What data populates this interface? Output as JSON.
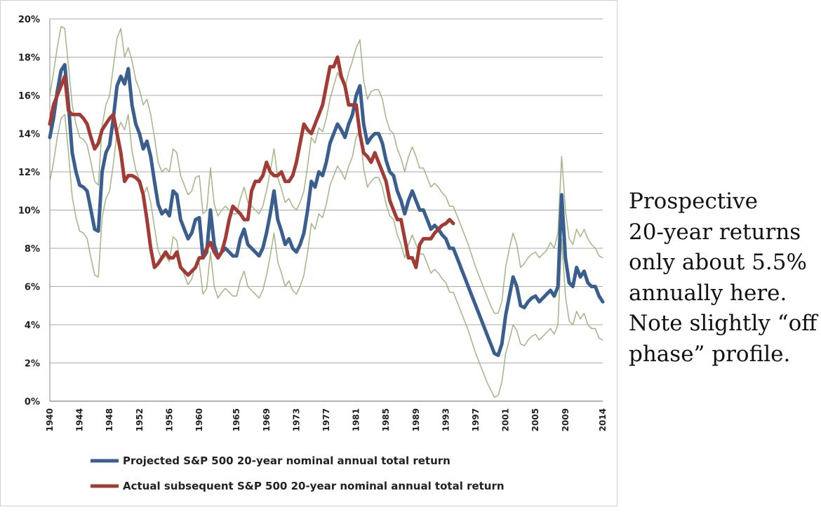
{
  "annotation": {
    "lines": [
      "Prospective",
      "20-year returns",
      "only about 5.5%",
      "annually here.",
      "Note slightly “off",
      "phase” profile."
    ]
  },
  "chart_data": {
    "type": "line",
    "title": "",
    "xlabel": "",
    "ylabel": "",
    "xlim": [
      1940,
      2014
    ],
    "ylim": [
      0,
      20
    ],
    "y_ticks": [
      "0%",
      "2%",
      "4%",
      "6%",
      "8%",
      "10%",
      "12%",
      "14%",
      "16%",
      "18%",
      "20%"
    ],
    "x_ticks": [
      "1940",
      "1944",
      "1948",
      "1952",
      "1956",
      "1960",
      "1965",
      "1969",
      "1973",
      "1977",
      "1981",
      "1985",
      "1989",
      "1993",
      "1997",
      "2001",
      "2005",
      "2009",
      "2014"
    ],
    "grid": "horizontal",
    "legend_position": "bottom",
    "series": [
      {
        "name": "Projected S&P 500 20-year nominal annual total return",
        "color": "#3a5f8f",
        "role": "main",
        "x": [
          1940,
          1940.5,
          1941,
          1941.5,
          1942,
          1942.5,
          1943,
          1943.5,
          1944,
          1944.5,
          1945,
          1945.5,
          1946,
          1946.5,
          1947,
          1947.5,
          1948,
          1948.5,
          1949,
          1949.5,
          1950,
          1950.5,
          1951,
          1951.5,
          1952,
          1952.5,
          1953,
          1953.5,
          1954,
          1954.5,
          1955,
          1955.5,
          1956,
          1956.5,
          1957,
          1957.5,
          1958,
          1958.5,
          1959,
          1959.5,
          1960,
          1960.5,
          1961,
          1961.5,
          1962,
          1962.5,
          1963,
          1963.5,
          1964,
          1964.5,
          1965,
          1965.5,
          1966,
          1966.5,
          1967,
          1967.5,
          1968,
          1968.5,
          1969,
          1969.5,
          1970,
          1970.5,
          1971,
          1971.5,
          1972,
          1972.5,
          1973,
          1973.5,
          1974,
          1974.5,
          1975,
          1975.5,
          1976,
          1976.5,
          1977,
          1977.5,
          1978,
          1978.5,
          1979,
          1979.5,
          1980,
          1980.5,
          1981,
          1981.5,
          1982,
          1982.5,
          1983,
          1983.5,
          1984,
          1984.5,
          1985,
          1985.5,
          1986,
          1986.5,
          1987,
          1987.5,
          1988,
          1988.5,
          1989,
          1989.5,
          1990,
          1990.5,
          1991,
          1991.5,
          1992,
          1992.5,
          1993,
          1993.5,
          1994,
          1994.5,
          1995,
          1995.5,
          1996,
          1996.5,
          1997,
          1997.5,
          1998,
          1998.5,
          1999,
          1999.5,
          2000,
          2000.5,
          2001,
          2001.5,
          2002,
          2002.5,
          2003,
          2003.5,
          2004,
          2004.5,
          2005,
          2005.5,
          2006,
          2006.5,
          2007,
          2007.5,
          2008,
          2008.5,
          2009,
          2009.5,
          2010,
          2010.5,
          2011,
          2011.5,
          2012,
          2012.5,
          2013,
          2013.5,
          2014
        ],
        "y": [
          13.8,
          14.8,
          16.2,
          17.3,
          17.6,
          15.5,
          13.0,
          12.0,
          11.3,
          11.2,
          11.0,
          10.0,
          9.0,
          8.9,
          12.0,
          13.0,
          13.4,
          14.8,
          16.5,
          17.0,
          16.6,
          17.4,
          15.5,
          14.5,
          14.0,
          13.2,
          13.6,
          12.8,
          11.5,
          10.3,
          9.8,
          10.0,
          9.7,
          11.0,
          10.8,
          9.5,
          9.0,
          8.5,
          8.8,
          9.5,
          9.6,
          7.5,
          7.8,
          10.0,
          8.2,
          7.5,
          7.8,
          8.0,
          7.8,
          7.6,
          7.6,
          8.5,
          9.0,
          8.2,
          8.0,
          7.8,
          7.6,
          8.0,
          8.8,
          9.8,
          11.0,
          9.5,
          8.9,
          8.2,
          8.5,
          8.0,
          7.8,
          8.2,
          8.8,
          10.0,
          11.5,
          11.2,
          12.0,
          11.8,
          12.5,
          13.5,
          14.0,
          14.5,
          14.2,
          13.8,
          14.5,
          15.0,
          16.0,
          16.5,
          14.5,
          13.5,
          13.8,
          14.0,
          14.0,
          13.5,
          12.6,
          12.0,
          11.8,
          11.0,
          10.5,
          9.8,
          10.5,
          11.0,
          10.5,
          10.0,
          10.0,
          9.5,
          9.0,
          9.2,
          9.0,
          8.7,
          8.5,
          8.0,
          8.0,
          7.5,
          7.0,
          6.5,
          6.0,
          5.5,
          5.0,
          4.5,
          4.0,
          3.5,
          3.0,
          2.5,
          2.4,
          3.0,
          4.5,
          5.5,
          6.5,
          6.0,
          5.0,
          4.9,
          5.2,
          5.4,
          5.5,
          5.2,
          5.4,
          5.6,
          5.8,
          5.5,
          6.0,
          10.8,
          7.5,
          6.2,
          6.0,
          7.0,
          6.5,
          6.8,
          6.2,
          6.0,
          6.0,
          5.5,
          5.2
        ]
      },
      {
        "name": "Actual subsequent S&P 500 20-year nominal annual total return",
        "color": "#a33b35",
        "role": "main",
        "x": [
          1940,
          1940.5,
          1941,
          1941.5,
          1942,
          1942.5,
          1943,
          1943.5,
          1944,
          1944.5,
          1945,
          1945.5,
          1946,
          1946.5,
          1947,
          1947.5,
          1948,
          1948.5,
          1949,
          1949.5,
          1950,
          1950.5,
          1951,
          1951.5,
          1952,
          1952.5,
          1953,
          1953.5,
          1954,
          1954.5,
          1955,
          1955.5,
          1956,
          1956.5,
          1957,
          1957.5,
          1958,
          1958.5,
          1959,
          1959.5,
          1960,
          1960.5,
          1961,
          1961.5,
          1962,
          1962.5,
          1963,
          1963.5,
          1964,
          1964.5,
          1965,
          1965.5,
          1966,
          1966.5,
          1967,
          1967.5,
          1968,
          1968.5,
          1969,
          1969.5,
          1970,
          1970.5,
          1971,
          1971.5,
          1972,
          1972.5,
          1973,
          1973.5,
          1974,
          1974.5,
          1975,
          1975.5,
          1976,
          1976.5,
          1977,
          1977.5,
          1978,
          1978.5,
          1979,
          1979.5,
          1980,
          1980.5,
          1981,
          1981.5,
          1982,
          1982.5,
          1983,
          1983.5,
          1984,
          1984.5,
          1985,
          1985.5,
          1986,
          1986.5,
          1987,
          1987.5,
          1988,
          1988.5,
          1989,
          1989.5,
          1990,
          1990.5,
          1991,
          1991.5,
          1992,
          1992.5,
          1993,
          1993.5,
          1994
        ],
        "y": [
          14.5,
          15.5,
          16.0,
          16.5,
          17.0,
          15.2,
          15.0,
          15.0,
          15.0,
          14.8,
          14.5,
          13.8,
          13.2,
          13.5,
          14.2,
          14.5,
          14.8,
          15.0,
          14.0,
          13.0,
          11.5,
          11.8,
          11.8,
          11.7,
          11.5,
          10.8,
          9.5,
          8.0,
          7.0,
          7.2,
          7.5,
          7.8,
          7.5,
          7.5,
          7.8,
          7.0,
          6.8,
          6.6,
          6.8,
          7.0,
          7.5,
          7.5,
          8.0,
          8.3,
          7.8,
          7.5,
          7.8,
          8.5,
          9.5,
          10.2,
          10.0,
          9.8,
          9.5,
          9.5,
          11.0,
          11.5,
          11.5,
          11.8,
          12.5,
          12.0,
          11.8,
          11.8,
          12.0,
          11.5,
          11.5,
          11.8,
          12.5,
          13.5,
          14.5,
          14.2,
          14.0,
          14.5,
          15.0,
          15.5,
          16.5,
          17.5,
          17.5,
          18.0,
          17.0,
          16.5,
          15.5,
          15.5,
          15.5,
          14.0,
          13.0,
          12.8,
          12.5,
          13.0,
          12.5,
          12.0,
          11.5,
          10.5,
          10.0,
          9.5,
          9.5,
          8.5,
          7.5,
          7.5,
          7.0,
          8.2,
          8.5,
          8.5,
          8.5,
          8.8,
          9.0,
          9.2,
          9.3,
          9.5,
          9.3
        ]
      },
      {
        "name": "Upper band",
        "color": "#9fb07e",
        "role": "band",
        "x": [
          1940,
          1940.5,
          1941,
          1941.5,
          1942,
          1942.5,
          1943,
          1943.5,
          1944,
          1944.5,
          1945,
          1945.5,
          1946,
          1946.5,
          1947,
          1947.5,
          1948,
          1948.5,
          1949,
          1949.5,
          1950,
          1950.5,
          1951,
          1951.5,
          1952,
          1952.5,
          1953,
          1953.5,
          1954,
          1954.5,
          1955,
          1955.5,
          1956,
          1956.5,
          1957,
          1957.5,
          1958,
          1958.5,
          1959,
          1959.5,
          1960,
          1960.5,
          1961,
          1961.5,
          1962,
          1962.5,
          1963,
          1963.5,
          1964,
          1964.5,
          1965,
          1965.5,
          1966,
          1966.5,
          1967,
          1967.5,
          1968,
          1968.5,
          1969,
          1969.5,
          1970,
          1970.5,
          1971,
          1971.5,
          1972,
          1972.5,
          1973,
          1973.5,
          1974,
          1974.5,
          1975,
          1975.5,
          1976,
          1976.5,
          1977,
          1977.5,
          1978,
          1978.5,
          1979,
          1979.5,
          1980,
          1980.5,
          1981,
          1981.5,
          1982,
          1982.5,
          1983,
          1983.5,
          1984,
          1984.5,
          1985,
          1985.5,
          1986,
          1986.5,
          1987,
          1987.5,
          1988,
          1988.5,
          1989,
          1989.5,
          1990,
          1990.5,
          1991,
          1991.5,
          1992,
          1992.5,
          1993,
          1993.5,
          1994,
          1994.5,
          1995,
          1995.5,
          1996,
          1996.5,
          1997,
          1997.5,
          1998,
          1998.5,
          1999,
          1999.5,
          2000,
          2000.5,
          2001,
          2001.5,
          2002,
          2002.5,
          2003,
          2003.5,
          2004,
          2004.5,
          2005,
          2005.5,
          2006,
          2006.5,
          2007,
          2007.5,
          2008,
          2008.5,
          2009,
          2009.5,
          2010,
          2010.5,
          2011,
          2011.5,
          2012,
          2012.5,
          2013,
          2013.5,
          2014
        ],
        "y": [
          16.0,
          17.2,
          18.5,
          19.6,
          19.5,
          17.5,
          15.5,
          14.5,
          13.8,
          13.7,
          13.4,
          12.5,
          11.5,
          11.3,
          14.4,
          15.5,
          16.0,
          17.5,
          19.0,
          19.5,
          18.0,
          18.5,
          17.8,
          16.8,
          16.3,
          15.5,
          15.8,
          15.0,
          13.8,
          12.5,
          12.0,
          12.2,
          12.0,
          13.2,
          13.0,
          11.8,
          11.3,
          10.8,
          11.0,
          11.7,
          11.8,
          9.8,
          10.0,
          12.2,
          10.3,
          9.7,
          10.0,
          10.2,
          10.0,
          9.8,
          9.8,
          10.6,
          11.2,
          10.4,
          10.2,
          10.0,
          9.8,
          10.2,
          11.0,
          12.0,
          13.2,
          11.7,
          11.1,
          10.4,
          10.6,
          10.2,
          10.0,
          10.4,
          11.0,
          12.3,
          13.8,
          13.5,
          14.3,
          14.1,
          14.8,
          15.8,
          16.5,
          17.2,
          16.8,
          16.4,
          17.2,
          17.8,
          18.5,
          18.9,
          16.8,
          15.8,
          16.2,
          16.3,
          16.3,
          15.8,
          14.8,
          14.2,
          14.0,
          13.2,
          12.7,
          12.0,
          12.8,
          13.3,
          12.8,
          12.2,
          12.2,
          11.7,
          11.2,
          11.4,
          11.2,
          10.9,
          10.7,
          10.2,
          10.2,
          9.7,
          9.2,
          8.7,
          8.2,
          7.6,
          7.0,
          6.5,
          6.0,
          5.5,
          5.0,
          4.6,
          4.6,
          5.2,
          7.0,
          8.0,
          8.8,
          8.2,
          7.0,
          7.2,
          7.5,
          7.7,
          7.8,
          7.5,
          7.7,
          7.9,
          8.3,
          8.0,
          8.8,
          12.8,
          10.0,
          8.5,
          8.2,
          9.0,
          8.6,
          9.0,
          8.5,
          8.2,
          8.0,
          7.6,
          7.5
        ]
      },
      {
        "name": "Lower band",
        "color": "#9fb07e",
        "role": "band",
        "x": [
          1940,
          1940.5,
          1941,
          1941.5,
          1942,
          1942.5,
          1943,
          1943.5,
          1944,
          1944.5,
          1945,
          1945.5,
          1946,
          1946.5,
          1947,
          1947.5,
          1948,
          1948.5,
          1949,
          1949.5,
          1950,
          1950.5,
          1951,
          1951.5,
          1952,
          1952.5,
          1953,
          1953.5,
          1954,
          1954.5,
          1955,
          1955.5,
          1956,
          1956.5,
          1957,
          1957.5,
          1958,
          1958.5,
          1959,
          1959.5,
          1960,
          1960.5,
          1961,
          1961.5,
          1962,
          1962.5,
          1963,
          1963.5,
          1964,
          1964.5,
          1965,
          1965.5,
          1966,
          1966.5,
          1967,
          1967.5,
          1968,
          1968.5,
          1969,
          1969.5,
          1970,
          1970.5,
          1971,
          1971.5,
          1972,
          1972.5,
          1973,
          1973.5,
          1974,
          1974.5,
          1975,
          1975.5,
          1976,
          1976.5,
          1977,
          1977.5,
          1978,
          1978.5,
          1979,
          1979.5,
          1980,
          1980.5,
          1981,
          1981.5,
          1982,
          1982.5,
          1983,
          1983.5,
          1984,
          1984.5,
          1985,
          1985.5,
          1986,
          1986.5,
          1987,
          1987.5,
          1988,
          1988.5,
          1989,
          1989.5,
          1990,
          1990.5,
          1991,
          1991.5,
          1992,
          1992.5,
          1993,
          1993.5,
          1994,
          1994.5,
          1995,
          1995.5,
          1996,
          1996.5,
          1997,
          1997.5,
          1998,
          1998.5,
          1999,
          1999.5,
          2000,
          2000.5,
          2001,
          2001.5,
          2002,
          2002.5,
          2003,
          2003.5,
          2004,
          2004.5,
          2005,
          2005.5,
          2006,
          2006.5,
          2007,
          2007.5,
          2008,
          2008.5,
          2009,
          2009.5,
          2010,
          2010.5,
          2011,
          2011.5,
          2012,
          2012.5,
          2013,
          2013.5,
          2014
        ],
        "y": [
          11.5,
          12.5,
          13.8,
          14.8,
          15.0,
          13.0,
          10.7,
          9.6,
          8.9,
          8.8,
          8.5,
          7.5,
          6.6,
          6.5,
          9.6,
          10.6,
          11.0,
          12.4,
          14.1,
          14.6,
          14.2,
          15.0,
          13.1,
          12.1,
          11.6,
          10.8,
          11.2,
          10.4,
          9.1,
          7.9,
          7.4,
          7.6,
          7.3,
          8.6,
          8.4,
          7.1,
          6.6,
          6.1,
          6.4,
          7.1,
          7.2,
          5.6,
          5.9,
          7.8,
          6.0,
          5.4,
          5.7,
          5.9,
          5.7,
          5.5,
          5.5,
          6.3,
          6.8,
          6.0,
          5.8,
          5.6,
          5.4,
          5.8,
          6.6,
          7.6,
          8.8,
          7.3,
          6.7,
          6.0,
          6.3,
          5.8,
          5.6,
          6.0,
          6.6,
          7.8,
          9.3,
          9.0,
          9.8,
          9.6,
          10.3,
          11.3,
          11.8,
          12.3,
          12.0,
          11.6,
          12.3,
          12.8,
          13.8,
          14.2,
          12.2,
          11.2,
          11.5,
          11.7,
          11.7,
          11.2,
          10.3,
          9.7,
          9.5,
          8.7,
          8.2,
          7.5,
          8.2,
          8.7,
          8.2,
          7.7,
          7.7,
          7.2,
          6.7,
          6.9,
          6.7,
          6.4,
          6.2,
          5.7,
          5.7,
          5.2,
          4.7,
          4.2,
          3.7,
          3.1,
          2.5,
          2.0,
          1.5,
          1.0,
          0.6,
          0.2,
          0.3,
          1.0,
          2.5,
          3.2,
          4.0,
          3.7,
          3.0,
          2.9,
          3.2,
          3.4,
          3.5,
          3.2,
          3.4,
          3.6,
          3.8,
          3.5,
          4.0,
          8.5,
          5.5,
          4.2,
          4.0,
          4.7,
          4.3,
          4.6,
          4.0,
          3.8,
          3.8,
          3.3,
          3.2
        ]
      }
    ]
  }
}
